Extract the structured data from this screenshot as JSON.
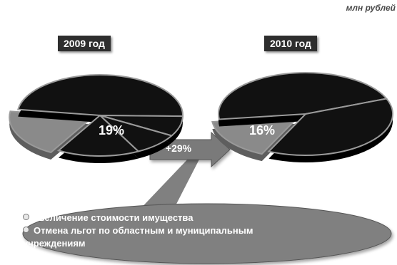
{
  "unit_label": "млн рублей",
  "growth": "+29%",
  "reasons": [
    "Увеличение стоимости имущества",
    "Отмена льгот по областным и муниципальным",
    "учреждениям"
  ],
  "colors": {
    "slice_dark": "#111111",
    "highlight": "#8a8a8a",
    "callout": "#808080",
    "label_bg": "#2e2e2e",
    "arrow": "#7a7a7a"
  },
  "chart_data": [
    {
      "type": "pie",
      "title": "2009 год",
      "highlight_label": "19%",
      "slices": [
        {
          "value": 19,
          "highlighted": true
        },
        {
          "value": 48
        },
        {
          "value": 8
        },
        {
          "value": 9
        },
        {
          "value": 16
        }
      ]
    },
    {
      "type": "pie",
      "title": "2010 год",
      "highlight_label": "16%",
      "slices": [
        {
          "value": 16,
          "highlighted": true
        },
        {
          "value": 46
        },
        {
          "value": 38
        }
      ]
    }
  ]
}
